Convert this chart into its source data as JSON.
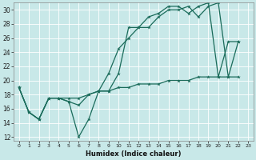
{
  "xlabel": "Humidex (Indice chaleur)",
  "bg_color": "#c8e8e8",
  "grid_color": "#b0d8d8",
  "line_color": "#1a6b5a",
  "xlim": [
    -0.5,
    23.5
  ],
  "ylim": [
    11.5,
    31.0
  ],
  "xticks": [
    0,
    1,
    2,
    3,
    4,
    5,
    6,
    7,
    8,
    9,
    10,
    11,
    12,
    13,
    14,
    15,
    16,
    17,
    18,
    19,
    20,
    21,
    22,
    23
  ],
  "yticks": [
    12,
    14,
    16,
    18,
    20,
    22,
    24,
    26,
    28,
    30
  ],
  "line1_x": [
    0,
    1,
    2,
    3,
    4,
    5,
    6,
    7,
    8,
    9,
    10,
    11,
    12,
    13,
    14,
    15,
    16,
    17,
    18,
    19,
    20,
    21,
    22
  ],
  "line1_y": [
    19.0,
    15.5,
    14.5,
    17.5,
    17.5,
    17.0,
    12.0,
    14.5,
    18.5,
    18.5,
    21.0,
    27.5,
    27.5,
    27.5,
    29.0,
    30.0,
    30.0,
    30.5,
    29.0,
    30.5,
    31.0,
    20.5,
    25.5
  ],
  "line2_x": [
    0,
    1,
    2,
    3,
    4,
    5,
    6,
    7,
    8,
    9,
    10,
    11,
    12,
    13,
    14,
    15,
    16,
    17,
    18,
    19,
    20,
    21,
    22
  ],
  "line2_y": [
    19.0,
    15.5,
    14.5,
    17.5,
    17.5,
    17.0,
    16.5,
    18.0,
    18.5,
    21.0,
    24.5,
    26.0,
    27.5,
    29.0,
    29.5,
    30.5,
    30.5,
    29.5,
    30.5,
    31.0,
    20.5,
    25.5,
    25.5
  ],
  "line3_x": [
    0,
    1,
    2,
    3,
    4,
    5,
    6,
    7,
    8,
    9,
    10,
    11,
    12,
    13,
    14,
    15,
    16,
    17,
    18,
    19,
    20,
    21,
    22
  ],
  "line3_y": [
    19.0,
    15.5,
    14.5,
    17.5,
    17.5,
    17.5,
    17.5,
    18.0,
    18.5,
    18.5,
    19.0,
    19.0,
    19.5,
    19.5,
    19.5,
    20.0,
    20.0,
    20.0,
    20.5,
    20.5,
    20.5,
    20.5,
    20.5
  ]
}
